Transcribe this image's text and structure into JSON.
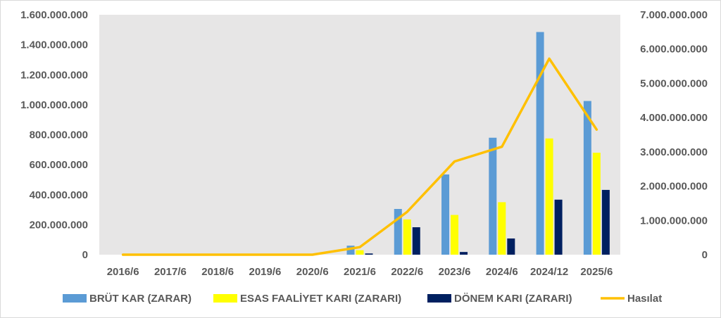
{
  "chart_data": {
    "type": "bar",
    "categories": [
      "2016/6",
      "2017/6",
      "2018/6",
      "2019/6",
      "2020/6",
      "2021/6",
      "2022/6",
      "2023/6",
      "2024/6",
      "2024/12",
      "2025/6"
    ],
    "y_left": {
      "ticks": [
        0,
        200000000,
        400000000,
        600000000,
        800000000,
        1000000000,
        1200000000,
        1400000000,
        1600000000
      ],
      "tick_labels": [
        "0",
        "200.000.000",
        "400.000.000",
        "600.000.000",
        "800.000.000",
        "1.000.000.000",
        "1.200.000.000",
        "1.400.000.000",
        "1.600.000.000"
      ],
      "ylim": [
        0,
        1600000000
      ]
    },
    "y_right": {
      "ticks": [
        0,
        1000000000,
        2000000000,
        3000000000,
        4000000000,
        5000000000,
        6000000000,
        7000000000
      ],
      "tick_labels": [
        "0",
        "1.000.000.000",
        "2.000.000.000",
        "3.000.000.000",
        "4.000.000.000",
        "5.000.000.000",
        "6.000.000.000",
        "7.000.000.000"
      ],
      "ylim": [
        0,
        7000000000
      ]
    },
    "series": [
      {
        "name": "BRÜT KAR (ZARAR)",
        "type": "bar",
        "axis": "left",
        "color": "#5B9BD5",
        "values": [
          0,
          0,
          0,
          0,
          0,
          60000000,
          305000000,
          535000000,
          780000000,
          1485000000,
          1025000000
        ]
      },
      {
        "name": "ESAS FAALİYET KARI (ZARARI)",
        "type": "bar",
        "axis": "left",
        "color": "#FFFF00",
        "values": [
          0,
          0,
          0,
          0,
          0,
          30000000,
          235000000,
          265000000,
          350000000,
          775000000,
          680000000
        ]
      },
      {
        "name": "DÖNEM KARI (ZARARI)",
        "type": "bar",
        "axis": "left",
        "color": "#002060",
        "values": [
          0,
          0,
          0,
          0,
          0,
          8000000,
          183000000,
          18000000,
          108000000,
          367000000,
          432000000
        ]
      },
      {
        "name": "Hasılat",
        "type": "line",
        "axis": "right",
        "color": "#FFC000",
        "values": [
          0,
          0,
          0,
          0,
          0,
          220000000,
          1250000000,
          2720000000,
          3150000000,
          5720000000,
          3650000000
        ]
      }
    ],
    "plot_background": "#E7E6E6",
    "legend": "bottom"
  }
}
